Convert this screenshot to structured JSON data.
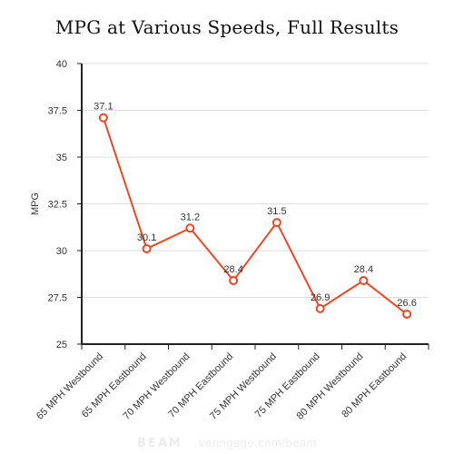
{
  "chart_data": {
    "type": "line",
    "title": "MPG at Various Speeds, Full Results",
    "xlabel": "",
    "ylabel": "MPG",
    "categories": [
      "65 MPH Westbound",
      "65 MPH Eastbound",
      "70 MPH Westbound",
      "70 MPH Eastbound",
      "75 MPH Westbound",
      "75 MPH Eastbound",
      "80 MPH Westbound",
      "80 MPH Eastbound"
    ],
    "values": [
      37.1,
      30.1,
      31.2,
      28.4,
      31.5,
      26.9,
      28.4,
      26.6
    ],
    "data_labels": [
      "37.1",
      "30.1",
      "31.2",
      "28.4",
      "31.5",
      "26.9",
      "28.4",
      "26.6"
    ],
    "ylim": [
      25,
      40
    ],
    "yticks": [
      25,
      27.5,
      30,
      32.5,
      35,
      37.5,
      40
    ],
    "ytick_labels": [
      "25",
      "27.5",
      "30",
      "32.5",
      "35",
      "37.5",
      "40"
    ],
    "grid": "horizontal",
    "legend": "none",
    "colors": {
      "line": "#ee4623",
      "marker_fill": "#ffffff",
      "grid": "#dddddd",
      "axis": "#222222",
      "text": "#333333"
    }
  },
  "watermark": {
    "logo": "BEAM",
    "text": "venngage.com/beam"
  }
}
